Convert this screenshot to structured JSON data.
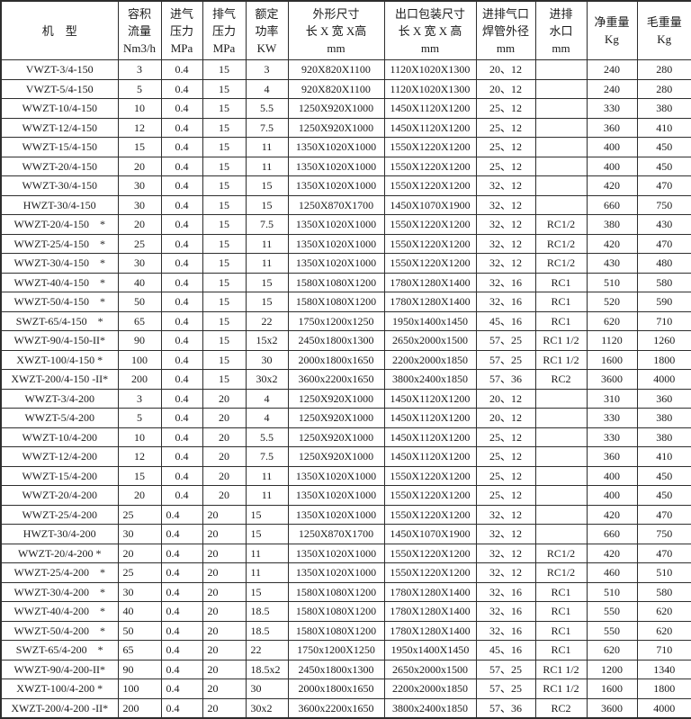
{
  "table": {
    "headers": [
      {
        "lines": [
          "机　型"
        ]
      },
      {
        "lines": [
          "容积",
          "流量",
          "Nm3/h"
        ]
      },
      {
        "lines": [
          "进气",
          "压力",
          "MPa"
        ]
      },
      {
        "lines": [
          "排气",
          "压力",
          "MPa"
        ]
      },
      {
        "lines": [
          "额定",
          "功率",
          "KW"
        ]
      },
      {
        "lines": [
          "外形尺寸",
          "长 X 宽 X高",
          "mm"
        ]
      },
      {
        "lines": [
          "出口包装尺寸",
          "长 X 宽 X 高",
          "mm"
        ]
      },
      {
        "lines": [
          "进排气口",
          "焊管外径",
          "mm"
        ]
      },
      {
        "lines": [
          "进排",
          "水口",
          "mm"
        ]
      },
      {
        "lines": [
          "净重量",
          "Kg"
        ]
      },
      {
        "lines": [
          "毛重量",
          "Kg"
        ]
      }
    ],
    "rows": [
      [
        "VWZT-3/4-150",
        "3",
        "0.4",
        "15",
        "3",
        "920X820X1100",
        "1120X1020X1300",
        "20、12",
        "",
        "240",
        "280"
      ],
      [
        "VWZT-5/4-150",
        "5",
        "0.4",
        "15",
        "4",
        "920X820X1100",
        "1120X1020X1300",
        "20、12",
        "",
        "240",
        "280"
      ],
      [
        "WWZT-10/4-150",
        "10",
        "0.4",
        "15",
        "5.5",
        "1250X920X1000",
        "1450X1120X1200",
        "25、12",
        "",
        "330",
        "380"
      ],
      [
        "WWZT-12/4-150",
        "12",
        "0.4",
        "15",
        "7.5",
        "1250X920X1000",
        "1450X1120X1200",
        "25、12",
        "",
        "360",
        "410"
      ],
      [
        "WWZT-15/4-150",
        "15",
        "0.4",
        "15",
        "11",
        "1350X1020X1000",
        "1550X1220X1200",
        "25、12",
        "",
        "400",
        "450"
      ],
      [
        "WWZT-20/4-150",
        "20",
        "0.4",
        "15",
        "11",
        "1350X1020X1000",
        "1550X1220X1200",
        "25、12",
        "",
        "400",
        "450"
      ],
      [
        "WWZT-30/4-150",
        "30",
        "0.4",
        "15",
        "15",
        "1350X1020X1000",
        "1550X1220X1200",
        "32、12",
        "",
        "420",
        "470"
      ],
      [
        "HWZT-30/4-150",
        "30",
        "0.4",
        "15",
        "15",
        "1250X870X1700",
        "1450X1070X1900",
        "32、12",
        "",
        "660",
        "750"
      ],
      [
        "WWZT-20/4-150　*",
        "20",
        "0.4",
        "15",
        "7.5",
        "1350X1020X1000",
        "1550X1220X1200",
        "32、12",
        "RC1/2",
        "380",
        "430"
      ],
      [
        "WWZT-25/4-150　*",
        "25",
        "0.4",
        "15",
        "11",
        "1350X1020X1000",
        "1550X1220X1200",
        "32、12",
        "RC1/2",
        "420",
        "470"
      ],
      [
        "WWZT-30/4-150　*",
        "30",
        "0.4",
        "15",
        "11",
        "1350X1020X1000",
        "1550X1220X1200",
        "32、12",
        "RC1/2",
        "430",
        "480"
      ],
      [
        "WWZT-40/4-150　*",
        "40",
        "0.4",
        "15",
        "15",
        "1580X1080X1200",
        "1780X1280X1400",
        "32、16",
        "RC1",
        "510",
        "580"
      ],
      [
        "WWZT-50/4-150　*",
        "50",
        "0.4",
        "15",
        "15",
        "1580X1080X1200",
        "1780X1280X1400",
        "32、16",
        "RC1",
        "520",
        "590"
      ],
      [
        "SWZT-65/4-150　*",
        "65",
        "0.4",
        "15",
        "22",
        "1750x1200x1250",
        "1950x1400x1450",
        "45、16",
        "RC1",
        "620",
        "710"
      ],
      [
        "WWZT-90/4-150-II*",
        "90",
        "0.4",
        "15",
        "15x2",
        "2450x1800x1300",
        "2650x2000x1500",
        "57、25",
        "RC1 1/2",
        "1120",
        "1260"
      ],
      [
        "XWZT-100/4-150 *",
        "100",
        "0.4",
        "15",
        "30",
        "2000x1800x1650",
        "2200x2000x1850",
        "57、25",
        "RC1 1/2",
        "1600",
        "1800"
      ],
      [
        "XWZT-200/4-150 -II*",
        "200",
        "0.4",
        "15",
        "30x2",
        "3600x2200x1650",
        "3800x2400x1850",
        "57、36",
        "RC2",
        "3600",
        "4000"
      ],
      [
        "WWZT-3/4-200",
        "3",
        "0.4",
        "20",
        "4",
        "1250X920X1000",
        "1450X1120X1200",
        "20、12",
        "",
        "310",
        "360"
      ],
      [
        "WWZT-5/4-200",
        "5",
        "0.4",
        "20",
        "4",
        "1250X920X1000",
        "1450X1120X1200",
        "20、12",
        "",
        "330",
        "380"
      ],
      [
        "WWZT-10/4-200",
        "10",
        "0.4",
        "20",
        "5.5",
        "1250X920X1000",
        "1450X1120X1200",
        "25、12",
        "",
        "330",
        "380"
      ],
      [
        "WWZT-12/4-200",
        "12",
        "0.4",
        "20",
        "7.5",
        "1250X920X1000",
        "1450X1120X1200",
        "25、12",
        "",
        "360",
        "410"
      ],
      [
        "WWZT-15/4-200",
        "15",
        "0.4",
        "20",
        "11",
        "1350X1020X1000",
        "1550X1220X1200",
        "25、12",
        "",
        "400",
        "450"
      ],
      [
        "WWZT-20/4-200",
        "20",
        "0.4",
        "20",
        "11",
        "1350X1020X1000",
        "1550X1220X1200",
        "25、12",
        "",
        "400",
        "450"
      ],
      [
        "WWZT-25/4-200",
        "25",
        "0.4",
        "20",
        "15",
        "1350X1020X1000",
        "1550X1220X1200",
        "32、12",
        "",
        "420",
        "470"
      ],
      [
        "HWZT-30/4-200",
        "30",
        "0.4",
        "20",
        "15",
        "1250X870X1700",
        "1450X1070X1900",
        "32、12",
        "",
        "660",
        "750"
      ],
      [
        "WWZT-20/4-200 *",
        "20",
        "0.4",
        "20",
        "11",
        "1350X1020X1000",
        "1550X1220X1200",
        "32、12",
        "RC1/2",
        "420",
        "470"
      ],
      [
        "WWZT-25/4-200　*",
        "25",
        "0.4",
        "20",
        "11",
        "1350X1020X1000",
        "1550X1220X1200",
        "32、12",
        "RC1/2",
        "460",
        "510"
      ],
      [
        "WWZT-30/4-200　*",
        "30",
        "0.4",
        "20",
        "15",
        "1580X1080X1200",
        "1780X1280X1400",
        "32、16",
        "RC1",
        "510",
        "580"
      ],
      [
        "WWZT-40/4-200　*",
        "40",
        "0.4",
        "20",
        "18.5",
        "1580X1080X1200",
        "1780X1280X1400",
        "32、16",
        "RC1",
        "550",
        "620"
      ],
      [
        "WWZT-50/4-200　*",
        "50",
        "0.4",
        "20",
        "18.5",
        "1580X1080X1200",
        "1780X1280X1400",
        "32、16",
        "RC1",
        "550",
        "620"
      ],
      [
        "SWZT-65/4-200　*",
        "65",
        "0.4",
        "20",
        "22",
        "1750x1200X1250",
        "1950x1400X1450",
        "45、16",
        "RC1",
        "620",
        "710"
      ],
      [
        "WWZT-90/4-200-II*",
        "90",
        "0.4",
        "20",
        "18.5x2",
        "2450x1800x1300",
        "2650x2000x1500",
        "57、25",
        "RC1 1/2",
        "1200",
        "1340"
      ],
      [
        "XWZT-100/4-200 *",
        "100",
        "0.4",
        "20",
        "30",
        "2000x1800x1650",
        "2200x2000x1850",
        "57、25",
        "RC1 1/2",
        "1600",
        "1800"
      ],
      [
        "XWZT-200/4-200 -II*",
        "200",
        "0.4",
        "20",
        "30x2",
        "3600x2200x1650",
        "3800x2400x1850",
        "57、36",
        "RC2",
        "3600",
        "4000"
      ]
    ]
  },
  "layout": {
    "left_align_from_row": 23
  },
  "colors": {
    "border": "#2e2e2e",
    "text": "#1a1a1a",
    "background": "#ffffff"
  }
}
